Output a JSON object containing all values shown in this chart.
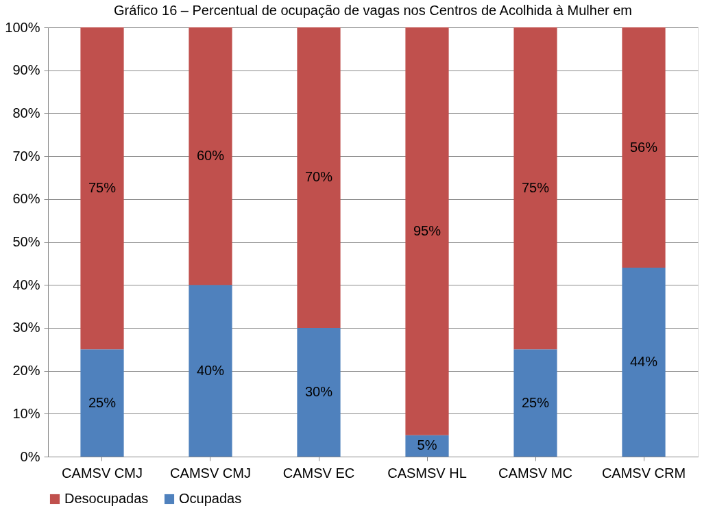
{
  "chart_data": {
    "type": "bar",
    "stacked": true,
    "title": "Gráfico 16 – Percentual de ocupação de vagas nos Centros de Acolhida à Mulher em",
    "categories": [
      "CAMSV CMJ",
      "CAMSV CMJ",
      "CAMSV EC",
      "CASMSV HL",
      "CAMSV MC",
      "CAMSV CRM"
    ],
    "series": [
      {
        "name": "Ocupadas",
        "color": "#4f81bd",
        "values": [
          25,
          40,
          30,
          5,
          25,
          44
        ],
        "value_labels": [
          "25%",
          "40%",
          "30%",
          "5%",
          "25%",
          "44%"
        ]
      },
      {
        "name": "Desocupadas",
        "color": "#c0504d",
        "values": [
          75,
          60,
          70,
          95,
          75,
          56
        ],
        "value_labels": [
          "75%",
          "60%",
          "70%",
          "95%",
          "75%",
          "56%"
        ]
      }
    ],
    "ylim": [
      0,
      100
    ],
    "yticks": [
      {
        "value": 0,
        "label": "0%"
      },
      {
        "value": 10,
        "label": "10%"
      },
      {
        "value": 20,
        "label": "20%"
      },
      {
        "value": 30,
        "label": "30%"
      },
      {
        "value": 40,
        "label": "40%"
      },
      {
        "value": 50,
        "label": "50%"
      },
      {
        "value": 60,
        "label": "60%"
      },
      {
        "value": 70,
        "label": "70%"
      },
      {
        "value": 80,
        "label": "80%"
      },
      {
        "value": 90,
        "label": "90%"
      },
      {
        "value": 100,
        "label": "100%"
      }
    ],
    "grid": "y",
    "legend": "bottom"
  }
}
